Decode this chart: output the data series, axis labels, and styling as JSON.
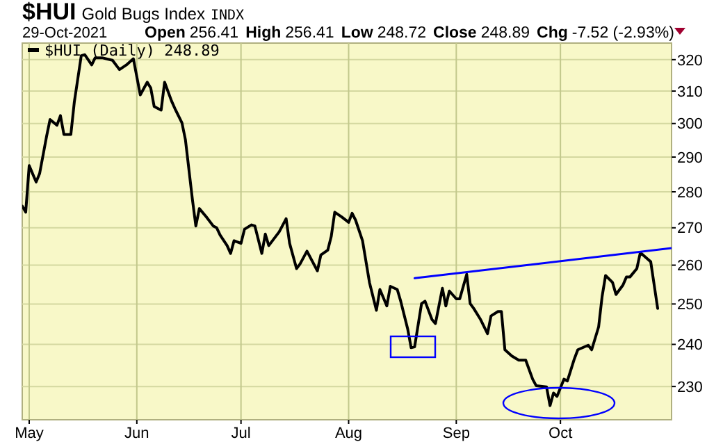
{
  "chart_data": {
    "type": "line",
    "title": "$HUI Gold Bugs Index",
    "subtitle": "29-Oct-2021",
    "annotations": [
      "INDX",
      "Open 256.41",
      "High 256.41",
      "Low 248.72",
      "Close 248.89",
      "Chg -7.52 (-2.93%)"
    ],
    "x": [
      "2021-04-29",
      "2021-04-30",
      "2021-05-01",
      "2021-05-03",
      "2021-05-04",
      "2021-05-06",
      "2021-05-07",
      "2021-05-09",
      "2021-05-10",
      "2021-05-11",
      "2021-05-13",
      "2021-05-14",
      "2021-05-16",
      "2021-05-17",
      "2021-05-19",
      "2021-05-20",
      "2021-05-22",
      "2021-05-25",
      "2021-05-27",
      "2021-05-29",
      "2021-05-31",
      "2021-06-02",
      "2021-06-04",
      "2021-06-05",
      "2021-06-06",
      "2021-06-08",
      "2021-06-09",
      "2021-06-11",
      "2021-06-12",
      "2021-06-14",
      "2021-06-15",
      "2021-06-17",
      "2021-06-18",
      "2021-06-19",
      "2021-06-21",
      "2021-06-23",
      "2021-06-24",
      "2021-06-25",
      "2021-06-27",
      "2021-06-28",
      "2021-06-29",
      "2021-07-01",
      "2021-07-02",
      "2021-07-04",
      "2021-07-05",
      "2021-07-07",
      "2021-07-08",
      "2021-07-09",
      "2021-07-12",
      "2021-07-14",
      "2021-07-15",
      "2021-07-17",
      "2021-07-18",
      "2021-07-20",
      "2021-07-23",
      "2021-07-24",
      "2021-07-26",
      "2021-07-27",
      "2021-07-28",
      "2021-07-30",
      "2021-08-01",
      "2021-08-02",
      "2021-08-03",
      "2021-08-05",
      "2021-08-07",
      "2021-08-09",
      "2021-08-10",
      "2021-08-12",
      "2021-08-13",
      "2021-08-15",
      "2021-08-16",
      "2021-08-18",
      "2021-08-19",
      "2021-08-20",
      "2021-08-22",
      "2021-08-23",
      "2021-08-25",
      "2021-08-26",
      "2021-08-28",
      "2021-08-29",
      "2021-08-30",
      "2021-09-01",
      "2021-09-02",
      "2021-09-04",
      "2021-09-05",
      "2021-09-06",
      "2021-09-08",
      "2021-09-10",
      "2021-09-11",
      "2021-09-13",
      "2021-09-14",
      "2021-09-15",
      "2021-09-17",
      "2021-09-19",
      "2021-09-21",
      "2021-09-23",
      "2021-09-24",
      "2021-09-27",
      "2021-09-28",
      "2021-09-29",
      "2021-09-30",
      "2021-10-02",
      "2021-10-03",
      "2021-10-05",
      "2021-10-06",
      "2021-10-09",
      "2021-10-10",
      "2021-10-12",
      "2021-10-13",
      "2021-10-14",
      "2021-10-16",
      "2021-10-17",
      "2021-10-19",
      "2021-10-20",
      "2021-10-21",
      "2021-10-23",
      "2021-10-24",
      "2021-10-26",
      "2021-10-27",
      "2021-10-29"
    ],
    "series": [
      {
        "name": "$HUI (Daily) 248.89",
        "color": "#000000",
        "values": [
          276.0,
          274.3,
          287.5,
          282.8,
          285.2,
          296.1,
          301.2,
          299.5,
          302.4,
          296.7,
          296.7,
          306.6,
          321.3,
          321.6,
          318.3,
          320.6,
          320.6,
          319.8,
          316.8,
          318.3,
          320.3,
          308.8,
          312.8,
          311.0,
          305.2,
          304.1,
          312.8,
          306.9,
          304.5,
          300.2,
          295.1,
          277.9,
          270.5,
          275.3,
          273.0,
          270.5,
          270.0,
          268.0,
          265.2,
          263.1,
          266.5,
          265.8,
          269.6,
          270.8,
          270.5,
          263.1,
          268.3,
          265.2,
          268.9,
          272.5,
          265.8,
          259.1,
          260.3,
          263.7,
          258.5,
          262.7,
          264.0,
          267.7,
          274.3,
          273.0,
          271.5,
          274.0,
          272.1,
          266.5,
          255.5,
          248.4,
          253.7,
          249.5,
          254.5,
          253.7,
          250.7,
          243.8,
          239.2,
          239.4,
          250.1,
          250.7,
          246.1,
          245.1,
          254.0,
          249.5,
          253.3,
          251.3,
          251.3,
          257.6,
          250.1,
          248.9,
          246.1,
          242.6,
          247.0,
          248.1,
          248.1,
          238.7,
          237.2,
          236.2,
          236.2,
          231.7,
          230.2,
          229.9,
          225.6,
          228.5,
          227.7,
          231.7,
          231.3,
          236.5,
          238.7,
          239.8,
          238.7,
          244.3,
          251.9,
          257.3,
          255.5,
          252.4,
          254.8,
          256.9,
          256.9,
          259.1,
          263.3,
          261.7,
          260.9,
          248.89
        ]
      },
      {
        "type": "line",
        "color": "#0000ff",
        "x": [
          "2021-08-20",
          "2021-11-02"
        ],
        "values": [
          256.6,
          264.5
        ]
      }
    ],
    "xlim": [
      "2021-04-29",
      "2021-11-02"
    ],
    "xticks": [
      {
        "value": "2021-05-01",
        "label": "May"
      },
      {
        "value": "2021-06-01",
        "label": "Jun"
      },
      {
        "value": "2021-07-01",
        "label": "Jul"
      },
      {
        "value": "2021-08-01",
        "label": "Aug"
      },
      {
        "value": "2021-09-01",
        "label": "Sep"
      },
      {
        "value": "2021-10-01",
        "label": "Oct"
      }
    ],
    "ylim": [
      222.4,
      325.4
    ],
    "yticks": [
      230,
      240,
      250,
      260,
      270,
      280,
      290,
      300,
      310,
      320
    ],
    "log": true,
    "grid": true,
    "legend": "top left",
    "marker": "none",
    "line_style": "solid"
  }
}
